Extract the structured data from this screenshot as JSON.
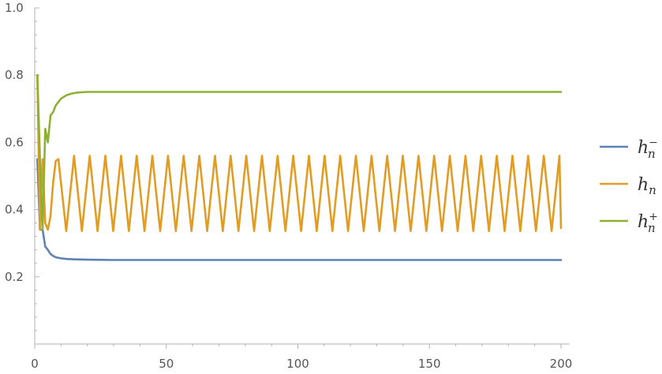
{
  "chart_data": {
    "type": "line",
    "title": "",
    "xlabel": "",
    "ylabel": "",
    "xlim": [
      0,
      200
    ],
    "ylim": [
      0,
      1.0
    ],
    "x_ticks": [
      0,
      50,
      100,
      150,
      200
    ],
    "x_tick_labels": [
      "0",
      "50",
      "100",
      "150",
      "200"
    ],
    "y_ticks": [
      0.2,
      0.4,
      0.6,
      0.8,
      1.0
    ],
    "y_tick_labels": [
      "0.2",
      "0.4",
      "0.6",
      "0.8",
      "1.0"
    ],
    "grid": false,
    "legend_position": "right",
    "colors": {
      "h_minus": "#5E81B5",
      "h": "#E19C24",
      "h_plus": "#8FB032"
    },
    "series": [
      {
        "name": "h_n^-",
        "legend_base": "h",
        "legend_sub": "n",
        "legend_sup": "−",
        "color": "#5E81B5",
        "x": [
          1,
          2,
          3,
          4,
          5,
          6,
          7,
          8,
          10,
          12,
          15,
          20,
          30,
          50,
          100,
          150,
          200
        ],
        "y": [
          0.55,
          0.34,
          0.34,
          0.29,
          0.28,
          0.268,
          0.262,
          0.258,
          0.255,
          0.253,
          0.252,
          0.251,
          0.25,
          0.25,
          0.25,
          0.25,
          0.25
        ]
      },
      {
        "name": "h_n",
        "legend_base": "h",
        "legend_sub": "n",
        "legend_sup": "",
        "color": "#E19C24",
        "pattern": {
          "x_start": 9,
          "x_end": 200,
          "period": 5.95,
          "min": 0.336,
          "max": 0.56
        },
        "x": [
          1,
          2,
          3,
          4,
          5,
          6,
          7,
          8,
          9
        ],
        "y": [
          0.8,
          0.34,
          0.55,
          0.36,
          0.34,
          0.38,
          0.48,
          0.545,
          0.55
        ]
      },
      {
        "name": "h_n^+",
        "legend_base": "h",
        "legend_sub": "n",
        "legend_sup": "+",
        "color": "#8FB032",
        "x": [
          1,
          2,
          3,
          4,
          5,
          6,
          7,
          8,
          9,
          10,
          11,
          12,
          14,
          16,
          20,
          30,
          50,
          100,
          150,
          200
        ],
        "y": [
          0.8,
          0.55,
          0.34,
          0.64,
          0.6,
          0.68,
          0.69,
          0.71,
          0.72,
          0.73,
          0.735,
          0.74,
          0.745,
          0.748,
          0.75,
          0.75,
          0.75,
          0.75,
          0.75,
          0.75
        ]
      }
    ]
  }
}
